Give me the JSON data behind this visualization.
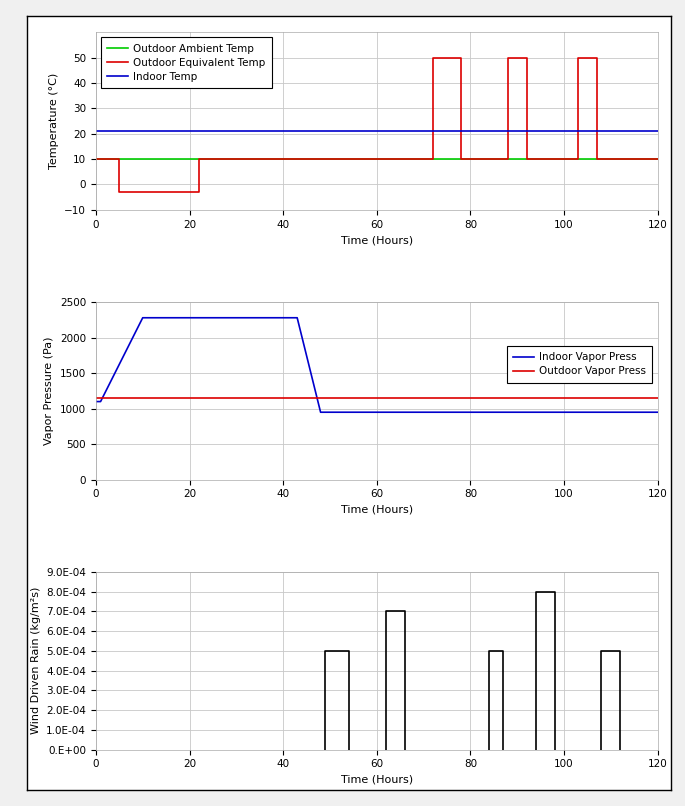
{
  "temp_plot": {
    "outdoor_ambient": {
      "x": [
        0,
        5,
        5,
        20,
        20,
        120
      ],
      "y": [
        10,
        10,
        10,
        10,
        10,
        10
      ],
      "color": "#00cc00",
      "label": "Outdoor Ambient Temp"
    },
    "outdoor_equivalent": {
      "x": [
        0,
        5,
        5,
        22,
        22,
        72,
        72,
        78,
        78,
        88,
        88,
        92,
        92,
        103,
        103,
        107,
        107,
        120
      ],
      "y": [
        10,
        10,
        -3,
        -3,
        10,
        10,
        50,
        50,
        10,
        10,
        50,
        50,
        10,
        10,
        50,
        50,
        10,
        10
      ],
      "color": "#dd0000",
      "label": "Outdoor Equivalent Temp"
    },
    "indoor": {
      "x": [
        0,
        120
      ],
      "y": [
        21,
        21
      ],
      "color": "#0000cc",
      "label": "Indoor Temp"
    },
    "xlabel": "Time (Hours)",
    "ylabel": "Temperature (°C)",
    "xlim": [
      0,
      120
    ],
    "ylim": [
      -10,
      60
    ],
    "yticks": [
      -10,
      0,
      10,
      20,
      30,
      40,
      50
    ],
    "xticks": [
      0,
      20,
      40,
      60,
      80,
      100,
      120
    ]
  },
  "vapor_plot": {
    "indoor": {
      "x": [
        0,
        1,
        10,
        43,
        48,
        120
      ],
      "y": [
        1100,
        1100,
        2280,
        2280,
        950,
        950
      ],
      "color": "#0000cc",
      "label": "Indoor Vapor Press"
    },
    "outdoor": {
      "x": [
        0,
        120
      ],
      "y": [
        1150,
        1150
      ],
      "color": "#dd0000",
      "label": "Outdoor Vapor Press"
    },
    "xlabel": "Time (Hours)",
    "ylabel": "Vapor Pressure (Pa)",
    "xlim": [
      0,
      120
    ],
    "ylim": [
      0,
      2500
    ],
    "yticks": [
      0,
      500,
      1000,
      1500,
      2000,
      2500
    ],
    "xticks": [
      0,
      20,
      40,
      60,
      80,
      100,
      120
    ]
  },
  "rain_plot": {
    "segments": [
      {
        "x": [
          49,
          49,
          54,
          54
        ],
        "y": [
          0,
          0.0005,
          0.0005,
          0
        ]
      },
      {
        "x": [
          62,
          62,
          66,
          66
        ],
        "y": [
          0,
          0.0007,
          0.0007,
          0
        ]
      },
      {
        "x": [
          84,
          84,
          87,
          87
        ],
        "y": [
          0,
          0.0005,
          0.0005,
          0
        ]
      },
      {
        "x": [
          94,
          94,
          98,
          98
        ],
        "y": [
          0,
          0.0008,
          0.0008,
          0
        ]
      },
      {
        "x": [
          108,
          108,
          112,
          112
        ],
        "y": [
          0,
          0.0005,
          0.0005,
          0
        ]
      }
    ],
    "color": "#000000",
    "xlabel": "Time (Hours)",
    "ylabel": "Wind Driven Rain (kg/m²s)",
    "xlim": [
      0,
      120
    ],
    "ylim": [
      0,
      0.0009
    ],
    "yticks": [
      0,
      0.0001,
      0.0002,
      0.0003,
      0.0004,
      0.0005,
      0.0006,
      0.0007,
      0.0008,
      0.0009
    ],
    "xticks": [
      0,
      20,
      40,
      60,
      80,
      100,
      120
    ]
  },
  "figure_bgcolor": "#f0f0f0",
  "axes_bgcolor": "#ffffff",
  "grid_color": "#c8c8c8",
  "border_color": "#000000"
}
